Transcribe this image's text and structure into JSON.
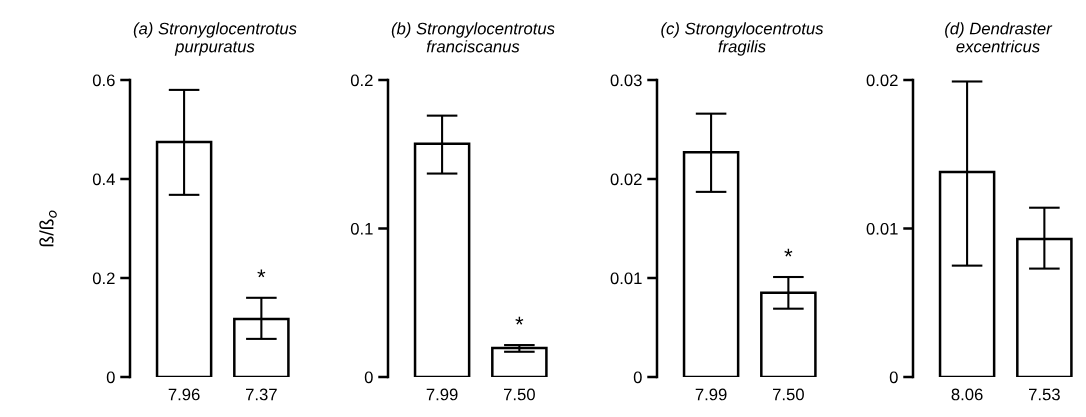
{
  "chart_data": [
    {
      "type": "bar",
      "title": "(a) Stronyglocentrotus\npurpuratus",
      "ylabel": "ß/ß$_{o}$",
      "categories": [
        "7.96",
        "7.37"
      ],
      "values": [
        0.475,
        0.117
      ],
      "errors": [
        [
          0.368,
          0.58
        ],
        [
          0.077,
          0.16
        ]
      ],
      "color": "#ffffff",
      "ylim": [
        0,
        0.6
      ],
      "yticks": [
        0,
        0.2,
        0.4,
        0.6
      ],
      "grid": false,
      "annotations": [
        {
          "text": "*",
          "x": "7.37",
          "y": 0.16
        }
      ]
    },
    {
      "type": "bar",
      "title": "(b) Strongylocentrotus\nfranciscanus",
      "categories": [
        "7.99",
        "7.50"
      ],
      "values": [
        0.157,
        0.0195
      ],
      "errors": [
        [
          0.137,
          0.176
        ],
        [
          0.017,
          0.0215
        ]
      ],
      "color": "#ffffff",
      "ylim": [
        0,
        0.2
      ],
      "yticks": [
        0,
        0.1,
        0.2
      ],
      "grid": false,
      "annotations": [
        {
          "text": "*",
          "x": "7.50",
          "y": 0.0215
        }
      ]
    },
    {
      "type": "bar",
      "title": "(c) Strongylocentrotus\nfragilis",
      "categories": [
        "7.99",
        "7.50"
      ],
      "values": [
        0.0227,
        0.0085
      ],
      "errors": [
        [
          0.0187,
          0.0266
        ],
        [
          0.0069,
          0.0101
        ]
      ],
      "color": "#ffffff",
      "ylim": [
        0,
        0.03
      ],
      "yticks": [
        0,
        0.01,
        0.02,
        0.03
      ],
      "grid": false,
      "annotations": [
        {
          "text": "*",
          "x": "7.50",
          "y": 0.0101
        }
      ]
    },
    {
      "type": "bar",
      "title": "(d) Dendraster\nexcentricus",
      "categories": [
        "8.06",
        "7.53"
      ],
      "values": [
        0.0138,
        0.0093
      ],
      "errors": [
        [
          0.0075,
          0.0199
        ],
        [
          0.0073,
          0.0114
        ]
      ],
      "color": "#ffffff",
      "ylim": [
        0,
        0.02
      ],
      "yticks": [
        0,
        0.01,
        0.02
      ],
      "grid": false
    }
  ]
}
